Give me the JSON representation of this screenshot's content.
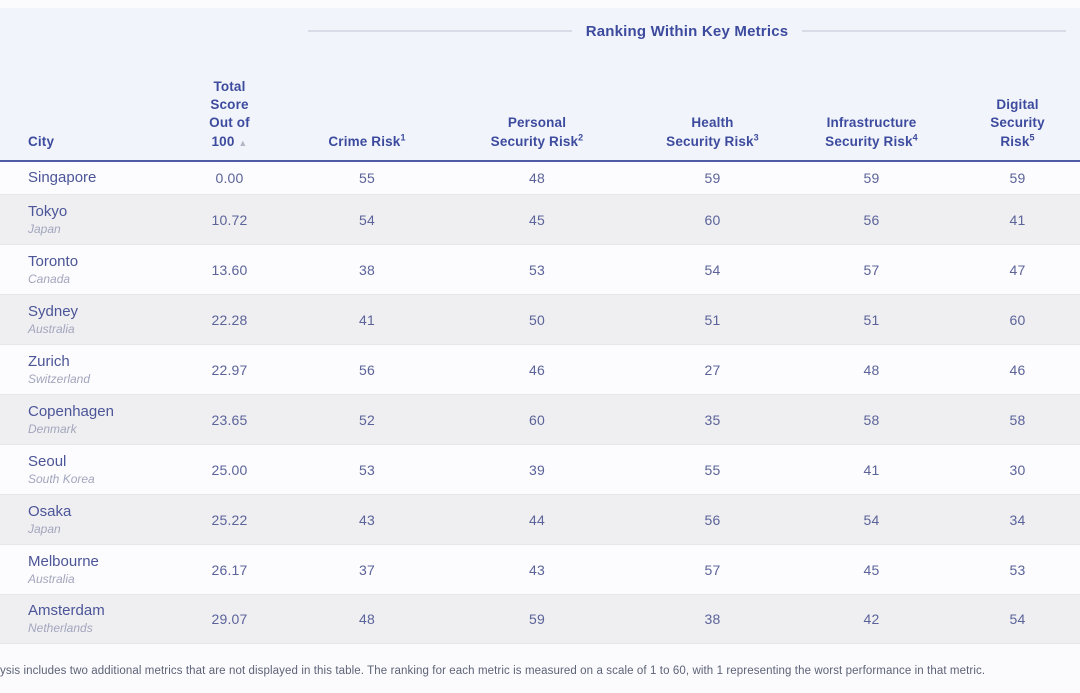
{
  "section_title": "Ranking Within Key Metrics",
  "sort_icon": "▲",
  "colors": {
    "header_text": "#3d4b9e",
    "header_band_bg": "#f2f4fb",
    "header_border": "#505ba6",
    "city_text": "#4b5597",
    "country_text": "#a2a6bc",
    "number_text": "#5b6399",
    "stripe_row_bg": "#efeff2",
    "white_row_bg": "#fcfcfe",
    "footnote_text": "#5d6377"
  },
  "headers": {
    "city": "City",
    "total": {
      "l1": "Total",
      "l2": "Score",
      "l3": "Out of",
      "l4": "100"
    },
    "crime": {
      "l1": "Crime Risk",
      "sup": "1"
    },
    "personal": {
      "l1": "Personal",
      "l2": "Security Risk",
      "sup": "2"
    },
    "health": {
      "l1": "Health",
      "l2": "Security Risk",
      "sup": "3"
    },
    "infrastructure": {
      "l1": "Infrastructure",
      "l2": "Security Risk",
      "sup": "4"
    },
    "digital": {
      "l1": "Digital",
      "l2": "Security",
      "l3": "Risk",
      "sup": "5"
    }
  },
  "chart_data": {
    "type": "table",
    "title": "Ranking Within Key Metrics",
    "columns": [
      "City",
      "Total Score Out of 100",
      "Crime Risk",
      "Personal Security Risk",
      "Health Security Risk",
      "Infrastructure Security Risk",
      "Digital Security Risk"
    ],
    "rows": [
      {
        "city": "Singapore",
        "country": "",
        "total": "0.00",
        "crime": "55",
        "personal": "48",
        "health": "59",
        "infrastructure": "59",
        "digital": "59"
      },
      {
        "city": "Tokyo",
        "country": "Japan",
        "total": "10.72",
        "crime": "54",
        "personal": "45",
        "health": "60",
        "infrastructure": "56",
        "digital": "41"
      },
      {
        "city": "Toronto",
        "country": "Canada",
        "total": "13.60",
        "crime": "38",
        "personal": "53",
        "health": "54",
        "infrastructure": "57",
        "digital": "47"
      },
      {
        "city": "Sydney",
        "country": "Australia",
        "total": "22.28",
        "crime": "41",
        "personal": "50",
        "health": "51",
        "infrastructure": "51",
        "digital": "60"
      },
      {
        "city": "Zurich",
        "country": "Switzerland",
        "total": "22.97",
        "crime": "56",
        "personal": "46",
        "health": "27",
        "infrastructure": "48",
        "digital": "46"
      },
      {
        "city": "Copenhagen",
        "country": "Denmark",
        "total": "23.65",
        "crime": "52",
        "personal": "60",
        "health": "35",
        "infrastructure": "58",
        "digital": "58"
      },
      {
        "city": "Seoul",
        "country": "South Korea",
        "total": "25.00",
        "crime": "53",
        "personal": "39",
        "health": "55",
        "infrastructure": "41",
        "digital": "30"
      },
      {
        "city": "Osaka",
        "country": "Japan",
        "total": "25.22",
        "crime": "43",
        "personal": "44",
        "health": "56",
        "infrastructure": "54",
        "digital": "34"
      },
      {
        "city": "Melbourne",
        "country": "Australia",
        "total": "26.17",
        "crime": "37",
        "personal": "43",
        "health": "57",
        "infrastructure": "45",
        "digital": "53"
      },
      {
        "city": "Amsterdam",
        "country": "Netherlands",
        "total": "29.07",
        "crime": "48",
        "personal": "59",
        "health": "38",
        "infrastructure": "42",
        "digital": "54"
      }
    ]
  },
  "footnote": "ysis includes two additional metrics that are not displayed in this table. The ranking for each metric is measured on a scale of 1 to 60, with 1 representing the worst performance in that metric."
}
